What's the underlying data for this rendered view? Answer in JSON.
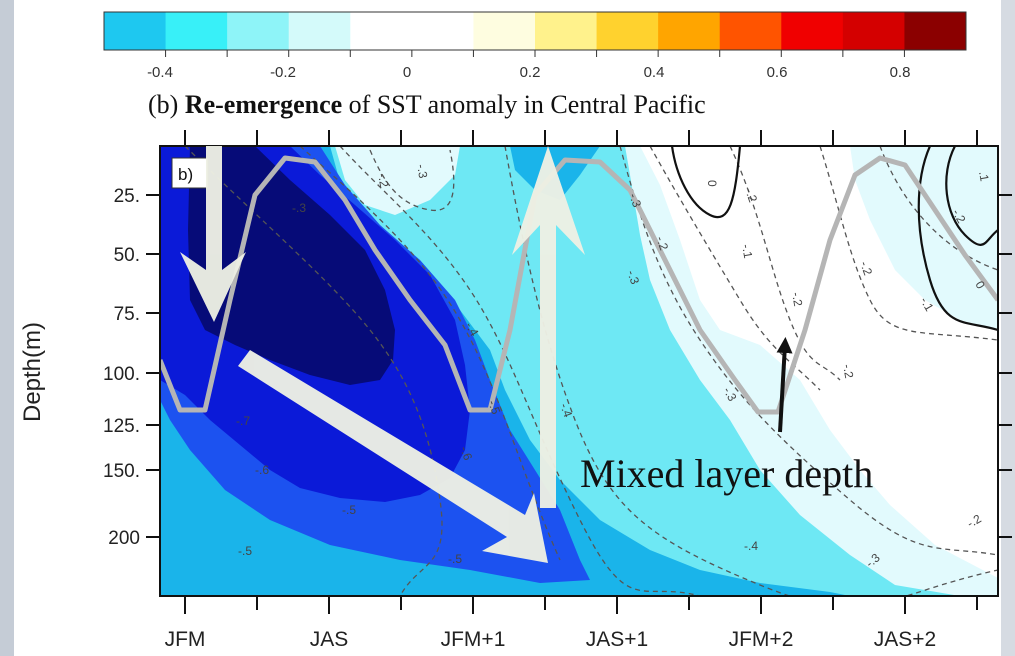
{
  "chart_data": {
    "type": "heatmap",
    "title_prefix": "(b)",
    "title_bold": "Re-emergence",
    "title_suffix": "of SST anomaly in Central Pacific",
    "panel_label": "b)",
    "ylabel": "Depth(m)",
    "y_ticks": [
      "25.",
      "50.",
      "75.",
      "100.",
      "125.",
      "150.",
      "200"
    ],
    "x_ticks": [
      "JFM",
      "JAS",
      "JFM+1",
      "JAS+1",
      "JFM+2",
      "JAS+2"
    ],
    "colorbar": {
      "tick_labels": [
        "-0.4",
        "-0.2",
        "0",
        "0.2",
        "0.4",
        "0.6",
        "0.8"
      ],
      "colors": [
        "#1ec8f0",
        "#38f0f8",
        "#8ef4f8",
        "#d4fafa",
        "#ffffff",
        "#ffffff",
        "#fefde0",
        "#fff28c",
        "#ffd22e",
        "#ffa500",
        "#ff5400",
        "#f00000",
        "#d40000",
        "#8b0000"
      ]
    },
    "fill_colors": {
      "deep": "#060b78",
      "very_strong": "#0b1ad8",
      "strong": "#1c52f0",
      "moderate": "#1ab4ea",
      "weak": "#6ee8f4",
      "faint": "#e2fafd",
      "neutral": "#ffffff"
    },
    "mixed_layer_color": "#b5b5b5",
    "contour_labels": [
      "-.3",
      "-.2",
      "-.3",
      "-.4",
      "-.5",
      "-.6",
      "-.7",
      "-.6",
      "-.5",
      "-.5",
      "-.5",
      "-.4",
      "-.3",
      "-.2",
      "-.1",
      "-.2",
      "-.3",
      "0",
      "-.2",
      "-.2",
      "-.3",
      "-.2",
      "-.4",
      "-.3",
      "-.2",
      "0",
      "-.2",
      ".1",
      "-.1"
    ],
    "annotation": "Mixed layer depth"
  }
}
